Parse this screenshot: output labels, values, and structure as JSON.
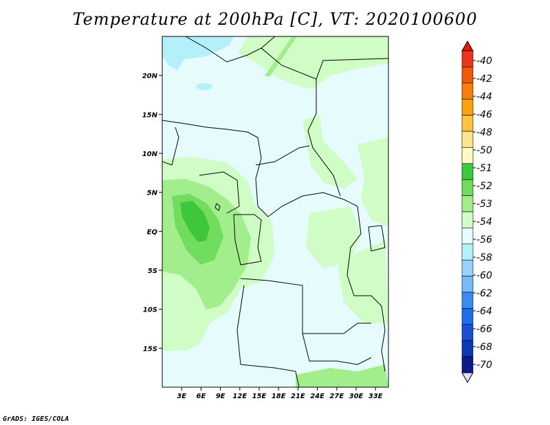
{
  "title": "Temperature at 200hPa [C], VT: 2020100600",
  "credit": "GrADS: IGES/COLA",
  "map": {
    "projection": "latlon",
    "lon_range": [
      0,
      35
    ],
    "lat_range": [
      -20,
      25
    ],
    "background_value_color": "#e6fcfc",
    "lat_ticks": [
      "20N",
      "15N",
      "10N",
      "5N",
      "EQ",
      "5S",
      "10S",
      "15S"
    ],
    "lat_values": [
      20,
      15,
      10,
      5,
      0,
      -5,
      -10,
      -15
    ],
    "lon_ticks": [
      "3E",
      "6E",
      "9E",
      "12E",
      "15E",
      "18E",
      "21E",
      "24E",
      "27E",
      "30E",
      "33E"
    ],
    "lon_values": [
      3,
      6,
      9,
      12,
      15,
      18,
      21,
      24,
      27,
      30,
      33
    ]
  },
  "colorbar": {
    "labels": [
      "-40",
      "-42",
      "-44",
      "-46",
      "-48",
      "-50",
      "-51",
      "-52",
      "-53",
      "-54",
      "-56",
      "-58",
      "-60",
      "-62",
      "-64",
      "-66",
      "-68",
      "-70"
    ],
    "colors": [
      "#e8341b",
      "#f05a0e",
      "#f57f0e",
      "#fca20f",
      "#fbc341",
      "#fde58e",
      "#fdfac5",
      "#3ec63c",
      "#72dc5f",
      "#a2ed8c",
      "#d0fcc6",
      "#e6fcfc",
      "#b4f0fa",
      "#96d2fa",
      "#78b9fa",
      "#3c8cf0",
      "#1e6eeb",
      "#1a4fd0",
      "#0c3ab4",
      "#0c1a8a"
    ],
    "arrow_top_color": "#e11a0a",
    "arrow_bottom_color": "#e0dcf8"
  }
}
